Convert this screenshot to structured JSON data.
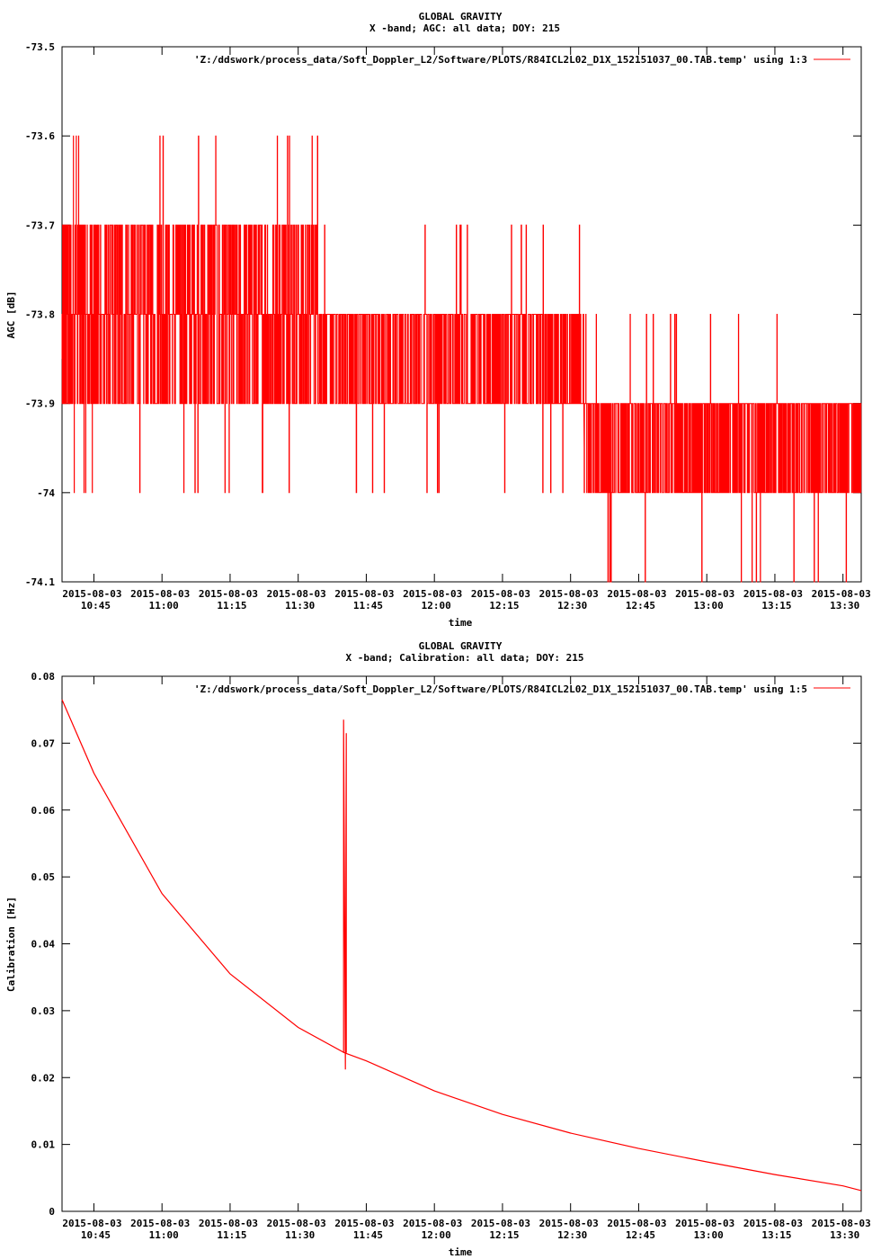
{
  "chart_data": [
    {
      "type": "line",
      "title": "GLOBAL GRAVITY",
      "subtitle": "X -band; AGC: all data; DOY: 215",
      "xlabel": "time",
      "ylabel": "AGC [dB]",
      "ylim": [
        -74.1,
        -73.5
      ],
      "yticks": [
        "-73.5",
        "-73.6",
        "-73.7",
        "-73.8",
        "-73.9",
        "-74",
        "-74.1"
      ],
      "ytick_values": [
        -73.5,
        -73.6,
        -73.7,
        -73.8,
        -73.9,
        -74.0,
        -74.1
      ],
      "xlim_minutes": [
        10.6333,
        13.5667
      ],
      "xticks_date": [
        "2015-08-03",
        "2015-08-03",
        "2015-08-03",
        "2015-08-03",
        "2015-08-03",
        "2015-08-03",
        "2015-08-03",
        "2015-08-03",
        "2015-08-03",
        "2015-08-03",
        "2015-08-03",
        "2015-08-03"
      ],
      "xticks_time": [
        "10:45",
        "11:00",
        "11:15",
        "11:30",
        "11:45",
        "12:00",
        "12:15",
        "12:30",
        "12:45",
        "13:00",
        "13:15",
        "13:30"
      ],
      "xtick_hours": [
        10.75,
        11.0,
        11.25,
        11.5,
        11.75,
        12.0,
        12.25,
        12.5,
        12.75,
        13.0,
        13.25,
        13.5
      ],
      "series": [
        {
          "name": "'Z:/ddswork/process_data/Soft_Doppler_L2/Software/PLOTS/R84ICL2L02_D1X_152151037_00.TAB.temp' using 1:3",
          "color": "#ff0000",
          "segments": [
            {
              "start": 10.633,
              "end": 10.76,
              "base": -73.85,
              "low": -73.9,
              "high": -73.7,
              "n": 180,
              "rare_low": -74.0,
              "rare_high": -73.6
            },
            {
              "start": 10.76,
              "end": 11.58,
              "base": -73.8,
              "low": -73.9,
              "high": -73.7,
              "n": 700,
              "rare_low": -74.0,
              "rare_high": -73.6
            },
            {
              "start": 11.58,
              "end": 12.55,
              "base": -73.85,
              "low": -73.9,
              "high": -73.8,
              "n": 700,
              "rare_low": -74.0,
              "rare_high": -73.7
            },
            {
              "start": 12.55,
              "end": 13.567,
              "base": -73.95,
              "low": -74.0,
              "high": -73.9,
              "n": 900,
              "rare_low": -74.1,
              "rare_high": -73.8
            }
          ]
        }
      ]
    },
    {
      "type": "line",
      "title": "GLOBAL GRAVITY",
      "subtitle": "X -band; Calibration: all data; DOY: 215",
      "xlabel": "time",
      "ylabel": "Calibration [Hz]",
      "ylim": [
        0,
        0.08
      ],
      "yticks": [
        "0",
        "0.01",
        "0.02",
        "0.03",
        "0.04",
        "0.05",
        "0.06",
        "0.07",
        "0.08"
      ],
      "ytick_values": [
        0,
        0.01,
        0.02,
        0.03,
        0.04,
        0.05,
        0.06,
        0.07,
        0.08
      ],
      "xticks_date": [
        "2015-08-03",
        "2015-08-03",
        "2015-08-03",
        "2015-08-03",
        "2015-08-03",
        "2015-08-03",
        "2015-08-03",
        "2015-08-03",
        "2015-08-03",
        "2015-08-03",
        "2015-08-03",
        "2015-08-03"
      ],
      "xticks_time": [
        "10:45",
        "11:00",
        "11:15",
        "11:30",
        "11:45",
        "12:00",
        "12:15",
        "12:30",
        "12:45",
        "13:00",
        "13:15",
        "13:30"
      ],
      "xtick_hours": [
        10.75,
        11.0,
        11.25,
        11.5,
        11.75,
        12.0,
        12.25,
        12.5,
        12.75,
        13.0,
        13.25,
        13.5
      ],
      "series": [
        {
          "name": "'Z:/ddswork/process_data/Soft_Doppler_L2/Software/PLOTS/R84ICL2L02_D1X_152151037_00.TAB.temp' using 1:5",
          "color": "#ff0000",
          "x": [
            10.633,
            10.75,
            11.0,
            11.25,
            11.5,
            11.67,
            11.75,
            12.0,
            12.25,
            12.5,
            12.75,
            13.0,
            13.25,
            13.5,
            13.567
          ],
          "y": [
            0.0765,
            0.0655,
            0.0475,
            0.0355,
            0.0275,
            0.0237,
            0.0225,
            0.018,
            0.0145,
            0.0117,
            0.0094,
            0.0074,
            0.0055,
            0.0038,
            0.0031
          ],
          "spike": {
            "x": 11.67,
            "y_max": 0.0735,
            "y_min": 0.0212
          }
        }
      ]
    }
  ]
}
